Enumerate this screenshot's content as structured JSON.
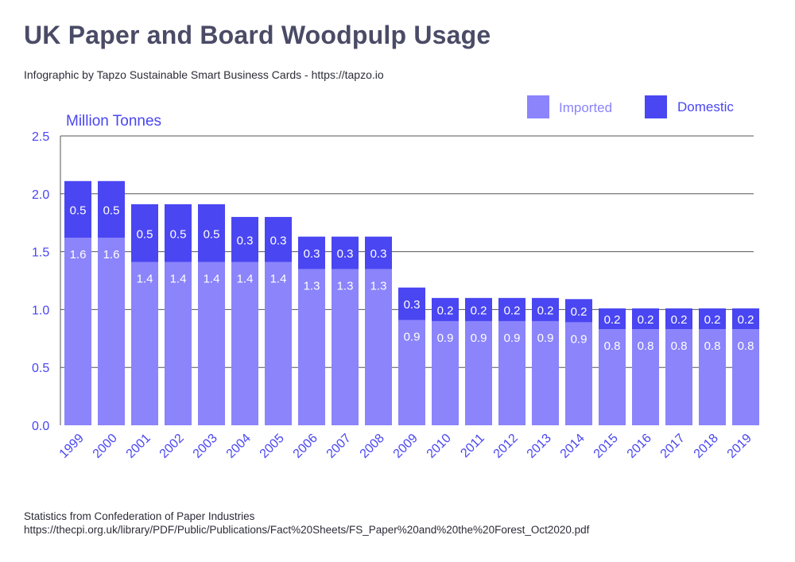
{
  "header": {
    "title": "UK Paper and Board Woodpulp Usage",
    "subtitle": "Infographic by Tapzo Sustainable Smart Business Cards - https://tapzo.io"
  },
  "footer": {
    "source_line1": "Statistics from Confederation of Paper Industries",
    "source_line2": "https://thecpi.org.uk/library/PDF/Public/Publications/Fact%20Sheets/FS_Paper%20and%20the%20Forest_Oct2020.pdf"
  },
  "colors": {
    "imported": "#8b84fb",
    "domestic": "#4a46f2",
    "axis_text": "#4a46f2",
    "grid": "#555555"
  },
  "chart_data": {
    "type": "bar",
    "stacked": true,
    "ylabel": "Million Tonnes",
    "ylim": [
      0,
      2.5
    ],
    "yticks": [
      "0.0",
      "0.5",
      "1.0",
      "1.5",
      "2.0",
      "2.5"
    ],
    "legend_position": "top-right",
    "categories": [
      "1999",
      "2000",
      "2001",
      "2002",
      "2003",
      "2004",
      "2005",
      "2006",
      "2007",
      "2008",
      "2009",
      "2010",
      "2011",
      "2012",
      "2013",
      "2014",
      "2015",
      "2016",
      "2017",
      "2018",
      "2019"
    ],
    "series": [
      {
        "name": "Imported",
        "values": [
          1.6,
          1.6,
          1.4,
          1.4,
          1.4,
          1.4,
          1.4,
          1.3,
          1.3,
          1.3,
          0.9,
          0.9,
          0.9,
          0.9,
          0.9,
          0.9,
          0.8,
          0.8,
          0.8,
          0.8,
          0.8
        ]
      },
      {
        "name": "Domestic",
        "values": [
          0.5,
          0.5,
          0.5,
          0.5,
          0.5,
          0.3,
          0.3,
          0.3,
          0.3,
          0.3,
          0.3,
          0.2,
          0.2,
          0.2,
          0.2,
          0.2,
          0.2,
          0.2,
          0.2,
          0.2,
          0.2
        ]
      }
    ],
    "totals": [
      2.11,
      2.11,
      1.91,
      1.91,
      1.91,
      1.8,
      1.8,
      1.63,
      1.63,
      1.63,
      1.19,
      1.1,
      1.1,
      1.1,
      1.1,
      1.09,
      1.01,
      1.01,
      1.01,
      1.01,
      1.01
    ],
    "imported_display": [
      1.62,
      1.62,
      1.41,
      1.41,
      1.41,
      1.41,
      1.41,
      1.35,
      1.35,
      1.35,
      0.91,
      0.9,
      0.9,
      0.9,
      0.9,
      0.89,
      0.83,
      0.83,
      0.83,
      0.83,
      0.83
    ]
  }
}
